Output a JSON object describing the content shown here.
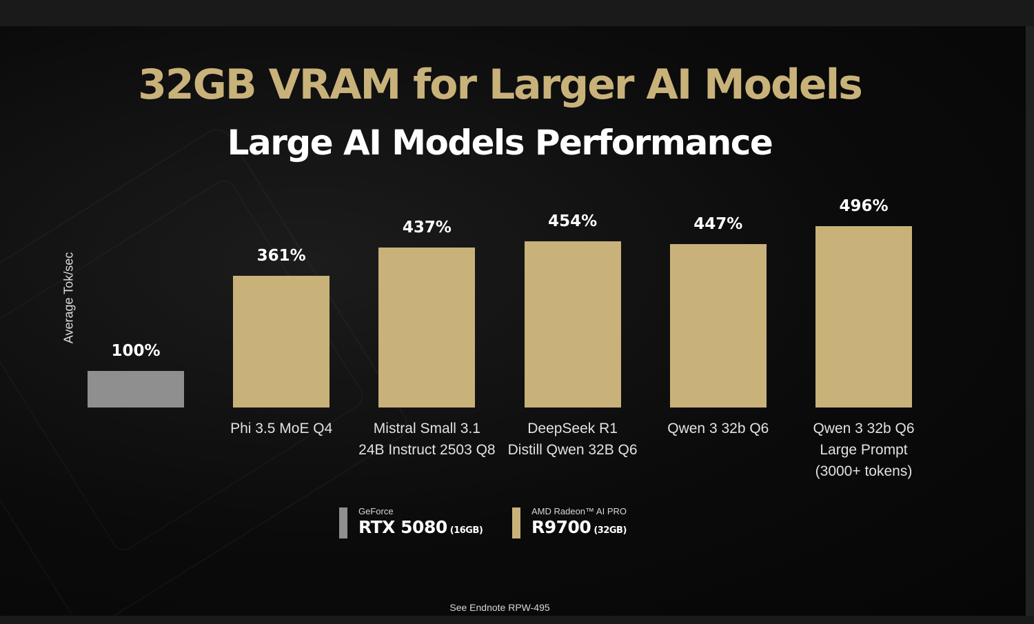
{
  "slide": {
    "title": "32GB VRAM for Larger AI Models",
    "subtitle": "Large AI Models Performance",
    "endnote": "See Endnote  RPW-495"
  },
  "legend": [
    {
      "brand": "GeForce",
      "model": "RTX 5080",
      "memory": "(16GB)",
      "color": "#8f8f8f"
    },
    {
      "brand": "AMD Radeon™ AI PRO",
      "model": "R9700",
      "memory": "(32GB)",
      "color": "#c9b27a"
    }
  ],
  "colors": {
    "title": "#c9b27a",
    "baseline_bar": "#8f8f8f",
    "r9700_bar": "#c9b27a",
    "background": "#0b0b0b"
  },
  "chart_data": {
    "type": "bar",
    "title": "Large AI Models Performance",
    "ylabel": "Average Tok/sec",
    "ylim": [
      0,
      500
    ],
    "categories": [
      "",
      "Phi 3.5 MoE Q4",
      "Mistral Small 3.1\n24B Instruct 2503 Q8",
      "DeepSeek R1\nDistill Qwen 32B Q6",
      "Qwen 3 32b Q6",
      "Qwen 3 32b Q6\nLarge Prompt\n(3000+ tokens)"
    ],
    "values": [
      100,
      361,
      437,
      454,
      447,
      496
    ],
    "data_labels": [
      "100%",
      "361%",
      "437%",
      "454%",
      "447%",
      "496%"
    ],
    "series_index": [
      0,
      1,
      1,
      1,
      1,
      1
    ],
    "series": [
      {
        "name": "RTX 5080 (16GB)"
      },
      {
        "name": "R9700 (32GB)"
      }
    ]
  }
}
